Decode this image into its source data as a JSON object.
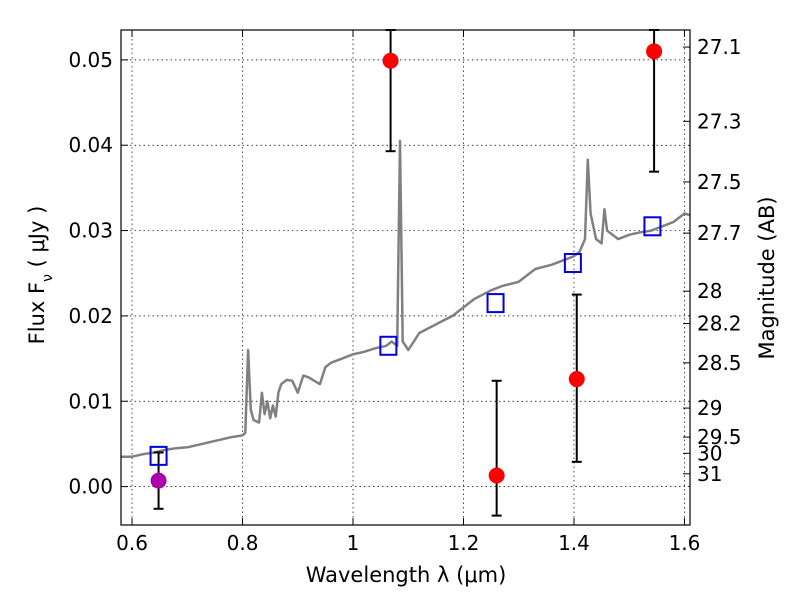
{
  "chart_data": {
    "type": "scatter",
    "xlabel": "Wavelength  λ (μm)",
    "ylabel": "Flux  F",
    "ylabel_sub": "ν",
    "ylabel_unit": "  ( μJy )",
    "ylabel_right": "Magnitude (AB)",
    "xlim": [
      0.58,
      1.61
    ],
    "ylim": [
      -0.0045,
      0.0535
    ],
    "grid": true,
    "x_ticks": [
      0.6,
      0.8,
      1.0,
      1.2,
      1.4,
      1.6
    ],
    "x_tick_labels": [
      "0.6",
      "0.8",
      "1",
      "1.2",
      "1.4",
      "1.6"
    ],
    "y_ticks": [
      0.0,
      0.01,
      0.02,
      0.03,
      0.04,
      0.05
    ],
    "y_tick_labels": [
      "0.00",
      "0.01",
      "0.02",
      "0.03",
      "0.04",
      "0.05"
    ],
    "right_ticks": [
      {
        "label": "27.1",
        "flux": 0.0515
      },
      {
        "label": "27.3",
        "flux": 0.0428
      },
      {
        "label": "27.5",
        "flux": 0.0357
      },
      {
        "label": "27.7",
        "flux": 0.0297
      },
      {
        "label": "28",
        "flux": 0.0229
      },
      {
        "label": "28.2",
        "flux": 0.0191
      },
      {
        "label": "28.5",
        "flux": 0.0145
      },
      {
        "label": "29",
        "flux": 0.0092
      },
      {
        "label": "29.5",
        "flux": 0.0058
      },
      {
        "label": "30",
        "flux": 0.0039
      },
      {
        "label": "31",
        "flux": 0.0015
      }
    ],
    "model_spectrum": {
      "color": "#808080",
      "x": [
        0.58,
        0.6,
        0.62,
        0.64,
        0.66,
        0.68,
        0.7,
        0.72,
        0.74,
        0.76,
        0.78,
        0.8,
        0.805,
        0.81,
        0.815,
        0.82,
        0.83,
        0.835,
        0.84,
        0.845,
        0.85,
        0.855,
        0.86,
        0.865,
        0.87,
        0.88,
        0.89,
        0.9,
        0.91,
        0.92,
        0.94,
        0.95,
        0.96,
        0.98,
        1.0,
        1.02,
        1.04,
        1.06,
        1.07,
        1.08,
        1.085,
        1.09,
        1.1,
        1.12,
        1.15,
        1.18,
        1.2,
        1.22,
        1.25,
        1.27,
        1.3,
        1.33,
        1.36,
        1.38,
        1.4,
        1.41,
        1.42,
        1.425,
        1.43,
        1.44,
        1.45,
        1.455,
        1.46,
        1.48,
        1.5,
        1.52,
        1.54,
        1.56,
        1.58,
        1.6,
        1.61
      ],
      "y": [
        0.0035,
        0.0035,
        0.0038,
        0.004,
        0.0043,
        0.0045,
        0.0046,
        0.0049,
        0.0052,
        0.0055,
        0.0058,
        0.006,
        0.0063,
        0.016,
        0.009,
        0.0078,
        0.0075,
        0.011,
        0.0085,
        0.01,
        0.008,
        0.0095,
        0.0082,
        0.011,
        0.012,
        0.0125,
        0.0124,
        0.011,
        0.013,
        0.0128,
        0.012,
        0.014,
        0.0145,
        0.015,
        0.0155,
        0.0158,
        0.0162,
        0.0165,
        0.017,
        0.0165,
        0.0405,
        0.017,
        0.016,
        0.018,
        0.019,
        0.02,
        0.021,
        0.022,
        0.023,
        0.0235,
        0.024,
        0.0255,
        0.026,
        0.0265,
        0.027,
        0.0275,
        0.029,
        0.0383,
        0.032,
        0.029,
        0.0285,
        0.0325,
        0.03,
        0.029,
        0.0295,
        0.0298,
        0.03,
        0.0305,
        0.031,
        0.032,
        0.0318
      ]
    },
    "model_points": {
      "color": "#0000dd",
      "x": [
        0.648,
        1.064,
        1.258,
        1.398,
        1.542
      ],
      "y": [
        0.0036,
        0.0165,
        0.0215,
        0.0262,
        0.0305
      ]
    },
    "detections": {
      "color": "#ff0000",
      "x": [
        1.068,
        1.26,
        1.405,
        1.545
      ],
      "y": [
        0.0499,
        0.0013,
        0.0126,
        0.051
      ],
      "err_low": [
        0.0393,
        -0.0034,
        0.0029,
        0.0369
      ],
      "err_high": [
        0.0535,
        0.0124,
        0.0225,
        0.0535
      ]
    },
    "purple_point": {
      "color": "#aa00aa",
      "x": [
        0.648
      ],
      "y": [
        0.0007
      ],
      "err_low": [
        -0.0026
      ],
      "err_high": [
        0.004
      ]
    }
  }
}
